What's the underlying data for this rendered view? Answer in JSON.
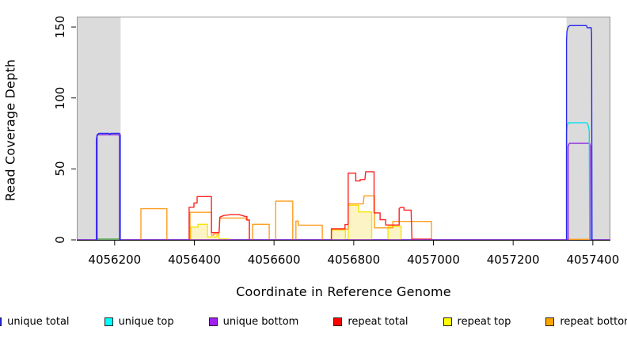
{
  "figure": {
    "xlabel": "Coordinate in Reference Genome",
    "ylabel": "Read Coverage Depth"
  },
  "legend": {
    "items": [
      {
        "label": "unique total",
        "color": "#2020DD"
      },
      {
        "label": "unique top",
        "color": "#00FFFF"
      },
      {
        "label": "unique bottom",
        "color": "#A020F0"
      },
      {
        "label": "repeat total",
        "color": "#FF0000"
      },
      {
        "label": "repeat top",
        "color": "#FFFF00"
      },
      {
        "label": "repeat bottom",
        "color": "#FFA500"
      }
    ]
  },
  "chart_data": {
    "type": "line",
    "title": "",
    "xlabel": "Coordinate in Reference Genome",
    "ylabel": "Read Coverage Depth",
    "xlim": [
      4056105,
      4057444
    ],
    "ylim": [
      0,
      157.3
    ],
    "x_ticks": [
      4056200,
      4056400,
      4056600,
      4056800,
      4057000,
      4057200,
      4057400
    ],
    "y_ticks": [
      0,
      50,
      100,
      150
    ],
    "grid": false,
    "legend_position": "bottom",
    "shaded_regions": [
      {
        "name": "left-gray-band",
        "x0": 4056105,
        "x1": 4056215,
        "color": "#DBDBDB"
      },
      {
        "name": "right-gray-band",
        "x0": 4057334,
        "x1": 4057444,
        "color": "#DBDBDB"
      }
    ],
    "series": [
      {
        "name": "repeat top",
        "color": "#F7E400",
        "fill": "#FDF4C5",
        "segments": [
          [
            [
              4056391,
              0
            ],
            [
              4056391,
              9
            ],
            [
              4056409,
              9
            ],
            [
              4056409,
              11
            ],
            [
              4056433,
              11
            ],
            [
              4056433,
              2.1
            ],
            [
              4056457,
              2.1
            ],
            [
              4056457,
              3.2
            ],
            [
              4056462,
              3.2
            ],
            [
              4056462,
              0.6
            ],
            [
              4056488,
              0.6
            ],
            [
              4056488,
              0
            ]
          ],
          [
            [
              4056744,
              0
            ],
            [
              4056744,
              7
            ],
            [
              4056779,
              7
            ],
            [
              4056779,
              0
            ]
          ],
          [
            [
              4056786,
              0
            ],
            [
              4056786,
              24.4
            ],
            [
              4056812,
              24.4
            ],
            [
              4056812,
              19.7
            ],
            [
              4056845,
              19.7
            ],
            [
              4056845,
              0
            ]
          ],
          [
            [
              4056886,
              0
            ],
            [
              4056886,
              9.5
            ],
            [
              4056919,
              9.5
            ],
            [
              4056919,
              0
            ]
          ]
        ]
      },
      {
        "name": "repeat bottom",
        "color": "#FF9D1F",
        "segments": [
          [
            [
              4056266,
              0
            ],
            [
              4056266,
              22
            ],
            [
              4056331,
              22
            ],
            [
              4056331,
              0
            ]
          ],
          [
            [
              4056389,
              0
            ],
            [
              4056389,
              19.4
            ],
            [
              4056443,
              19.4
            ],
            [
              4056443,
              3.3
            ],
            [
              4056448,
              3.3
            ],
            [
              4056448,
              4.2
            ],
            [
              4056462,
              4.2
            ],
            [
              4056464,
              15
            ],
            [
              4056470,
              15.4
            ],
            [
              4056530,
              15.4
            ],
            [
              4056530,
              14
            ],
            [
              4056538,
              14
            ],
            [
              4056538,
              0
            ]
          ],
          [
            [
              4056546,
              0
            ],
            [
              4056546,
              11
            ],
            [
              4056588,
              11
            ],
            [
              4056588,
              0
            ]
          ],
          [
            [
              4056604,
              0
            ],
            [
              4056604,
              27.3
            ],
            [
              4056647,
              27.3
            ],
            [
              4056647,
              0
            ]
          ],
          [
            [
              4056655,
              0
            ],
            [
              4056655,
              13.2
            ],
            [
              4056661,
              13.2
            ],
            [
              4056661,
              10.4
            ],
            [
              4056721,
              10.4
            ],
            [
              4056721,
              0
            ]
          ],
          [
            [
              4056744,
              0
            ],
            [
              4056744,
              7.6
            ],
            [
              4056786,
              7.6
            ],
            [
              4056786,
              25.3
            ],
            [
              4056824,
              25.3
            ],
            [
              4056826,
              31
            ],
            [
              4056852,
              31
            ],
            [
              4056852,
              8.5
            ],
            [
              4056898,
              8.5
            ],
            [
              4056898,
              13
            ],
            [
              4056995,
              13
            ],
            [
              4056995,
              0
            ]
          ],
          [
            [
              4057338,
              0.4
            ],
            [
              4057396,
              0.4
            ]
          ]
        ]
      },
      {
        "name": "repeat total",
        "color": "#FF2222",
        "segments": [
          [
            [
              4056387,
              0
            ],
            [
              4056387,
              23
            ],
            [
              4056399,
              23
            ],
            [
              4056399,
              26
            ],
            [
              4056407,
              26
            ],
            [
              4056407,
              30.5
            ],
            [
              4056443,
              30.5
            ],
            [
              4056443,
              5.2
            ],
            [
              4056462,
              5.2
            ],
            [
              4056464,
              16
            ],
            [
              4056474,
              17.2
            ],
            [
              4056492,
              17.8
            ],
            [
              4056512,
              17.8
            ],
            [
              4056528,
              16.5
            ],
            [
              4056532,
              16.5
            ],
            [
              4056532,
              14
            ],
            [
              4056538,
              14
            ],
            [
              4056538,
              0
            ]
          ],
          [
            [
              4056744,
              0
            ],
            [
              4056744,
              7.8
            ],
            [
              4056778,
              7.8
            ],
            [
              4056778,
              10.8
            ],
            [
              4056786,
              10.8
            ],
            [
              4056786,
              47
            ],
            [
              4056805,
              47
            ],
            [
              4056805,
              41.5
            ],
            [
              4056816,
              41.5
            ],
            [
              4056816,
              42.5
            ],
            [
              4056828,
              42.5
            ],
            [
              4056830,
              48
            ],
            [
              4056851,
              48
            ],
            [
              4056851,
              19
            ],
            [
              4056866,
              19
            ],
            [
              4056866,
              14.2
            ],
            [
              4056880,
              14.2
            ],
            [
              4056880,
              10.5
            ],
            [
              4056914,
              10.5
            ],
            [
              4056914,
              22
            ],
            [
              4056917,
              22.8
            ],
            [
              4056926,
              22.8
            ],
            [
              4056926,
              21
            ],
            [
              4056944,
              21
            ],
            [
              4056946,
              0.5
            ],
            [
              4056995,
              0.5
            ],
            [
              4056995,
              0
            ]
          ]
        ]
      },
      {
        "name": "zero-overlap-green",
        "color": "#55B055",
        "segments": [
          [
            [
              4056156,
              0.6
            ],
            [
              4056214,
              0.6
            ]
          ]
        ]
      },
      {
        "name": "unique bottom",
        "color": "#8A2BE2",
        "segments": [
          [
            [
              4056105,
              0
            ],
            [
              4056156,
              0
            ],
            [
              4056156,
              73
            ],
            [
              4056158,
              74
            ],
            [
              4056210,
              74
            ],
            [
              4056212,
              73
            ],
            [
              4056212,
              0
            ],
            [
              4057338,
              0
            ],
            [
              4057338,
              66
            ],
            [
              4057341,
              68
            ],
            [
              4057392,
              68
            ],
            [
              4057394,
              66
            ],
            [
              4057394,
              0
            ],
            [
              4057444,
              0
            ]
          ]
        ]
      },
      {
        "name": "unique top",
        "color": "#00E0EE",
        "segments": [
          [
            [
              4057334,
              0
            ],
            [
              4057334,
              76
            ],
            [
              4057336,
              81
            ],
            [
              4057339,
              82.5
            ],
            [
              4057385,
              82.5
            ],
            [
              4057388,
              81
            ],
            [
              4057391,
              77
            ],
            [
              4057392,
              0
            ]
          ]
        ]
      },
      {
        "name": "unique total",
        "color": "#2A2AEE",
        "segments": [
          [
            [
              4056154,
              0
            ],
            [
              4056154,
              71
            ],
            [
              4056156,
              74
            ],
            [
              4056160,
              75
            ],
            [
              4056186,
              75
            ],
            [
              4056188,
              74.2
            ],
            [
              4056190,
              75
            ],
            [
              4056212,
              75
            ],
            [
              4056214,
              74
            ],
            [
              4056214,
              0
            ]
          ],
          [
            [
              4057334,
              0
            ],
            [
              4057334,
              140
            ],
            [
              4057335,
              147
            ],
            [
              4057338,
              150
            ],
            [
              4057342,
              151
            ],
            [
              4057384,
              151
            ],
            [
              4057386,
              149.5
            ],
            [
              4057396,
              149.5
            ],
            [
              4057397,
              144
            ],
            [
              4057398,
              0
            ]
          ]
        ]
      }
    ]
  }
}
